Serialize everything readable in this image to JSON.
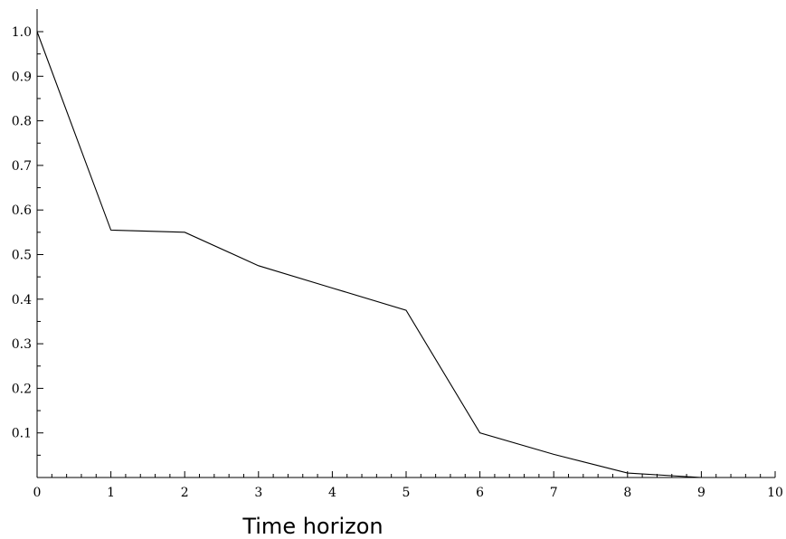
{
  "chart_data": {
    "type": "line",
    "title": "",
    "xlabel": "Time horizon",
    "ylabel": "",
    "xlim": [
      0,
      10
    ],
    "ylim": [
      0,
      1.0
    ],
    "xticks": [
      0,
      1,
      2,
      3,
      4,
      5,
      6,
      7,
      8,
      9,
      10
    ],
    "xtick_labels": [
      "0",
      "1",
      "2",
      "3",
      "4",
      "5",
      "6",
      "7",
      "8",
      "9",
      "10"
    ],
    "yticks": [
      0.1,
      0.2,
      0.3,
      0.4,
      0.5,
      0.6,
      0.7,
      0.8,
      0.9,
      1.0
    ],
    "ytick_labels": [
      "0.1",
      "0.2",
      "0.3",
      "0.4",
      "0.5",
      "0.6",
      "0.7",
      "0.8",
      "0.9",
      "1.0"
    ],
    "grid": false,
    "line_color": "#000000",
    "series": [
      {
        "x": [
          0,
          1,
          2,
          3,
          4,
          5,
          6,
          7,
          8,
          9
        ],
        "y": [
          1.0,
          0.555,
          0.55,
          0.475,
          0.425,
          0.375,
          0.1,
          0.052,
          0.01,
          0.0
        ]
      }
    ]
  }
}
